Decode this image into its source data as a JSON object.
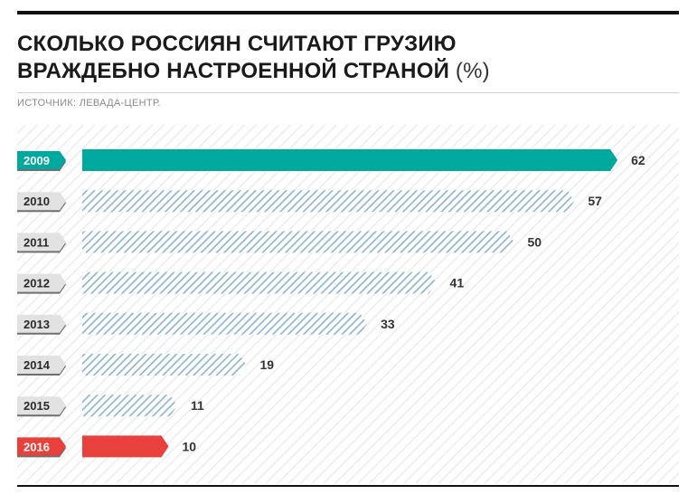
{
  "header": {
    "title_line1": "СКОЛЬКО РОССИЯН СЧИТАЮТ ГРУЗИЮ",
    "title_line2": "ВРАЖДЕБНО НАСТРОЕННОЙ СТРАНОЙ",
    "unit": "(%)",
    "source": "ИСТОЧНИК: ЛЕВАДА-ЦЕНТР."
  },
  "colors": {
    "teal": "#00a99d",
    "red": "#e8403a",
    "hatch": "#8bb3cf",
    "tab_default": "#e2e2e2",
    "tab_shadow": "#6f6f6f"
  },
  "chart_data": {
    "type": "bar",
    "orientation": "horizontal",
    "categories": [
      "2009",
      "2010",
      "2011",
      "2012",
      "2013",
      "2014",
      "2015",
      "2016"
    ],
    "values": [
      62,
      57,
      50,
      41,
      33,
      19,
      11,
      10
    ],
    "highlight": {
      "2009": "teal",
      "2016": "red"
    },
    "title": "СКОЛЬКО РОССИЯН СЧИТАЮТ ГРУЗИЮ ВРАЖДЕБНО НАСТРОЕННОЙ СТРАНОЙ",
    "unit": "%",
    "xlabel": "",
    "ylabel": "",
    "grid": false,
    "legend": "none"
  }
}
